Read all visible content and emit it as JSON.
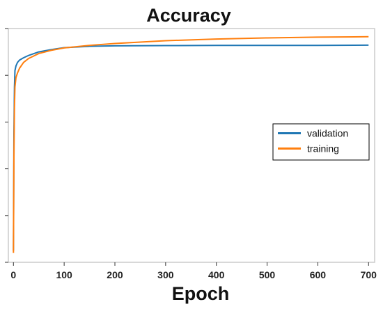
{
  "chart_data": {
    "type": "line",
    "title": "Accuracy",
    "xlabel": "Epoch",
    "ylabel": "",
    "xlim": [
      -10,
      712
    ],
    "ylim": [
      0.0,
      1.0
    ],
    "xticks": [
      0,
      100,
      200,
      300,
      400,
      500,
      600,
      700
    ],
    "yticks_labeled": false,
    "grid": false,
    "legend_position": "right",
    "series": [
      {
        "name": "validation",
        "color": "#1f77b4",
        "x": [
          0,
          1,
          2,
          3,
          5,
          8,
          12,
          20,
          30,
          50,
          75,
          100,
          150,
          200,
          300,
          400,
          500,
          600,
          700
        ],
        "y": [
          0.05,
          0.55,
          0.75,
          0.82,
          0.84,
          0.855,
          0.865,
          0.875,
          0.885,
          0.9,
          0.91,
          0.918,
          0.924,
          0.926,
          0.927,
          0.928,
          0.928,
          0.928,
          0.929
        ]
      },
      {
        "name": "training",
        "color": "#ff7f0e",
        "x": [
          0,
          1,
          2,
          3,
          5,
          8,
          12,
          20,
          30,
          50,
          75,
          100,
          150,
          200,
          300,
          400,
          500,
          600,
          700
        ],
        "y": [
          0.04,
          0.45,
          0.66,
          0.75,
          0.79,
          0.81,
          0.83,
          0.855,
          0.872,
          0.893,
          0.907,
          0.917,
          0.928,
          0.936,
          0.948,
          0.955,
          0.96,
          0.963,
          0.965
        ]
      }
    ]
  }
}
